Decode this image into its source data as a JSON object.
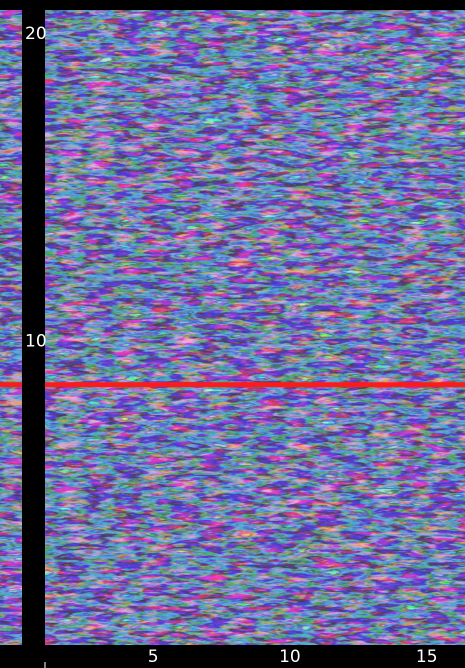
{
  "chart_data": {
    "type": "heatmap",
    "xlim": [
      -0.6,
      16.4
    ],
    "xticks": [
      5,
      10,
      15
    ],
    "ylim": [
      -0.6,
      21.1
    ],
    "yticks": [
      10,
      20
    ],
    "reference_line": 8.6,
    "reference_color": "#ff1a1a",
    "grid": false
  }
}
